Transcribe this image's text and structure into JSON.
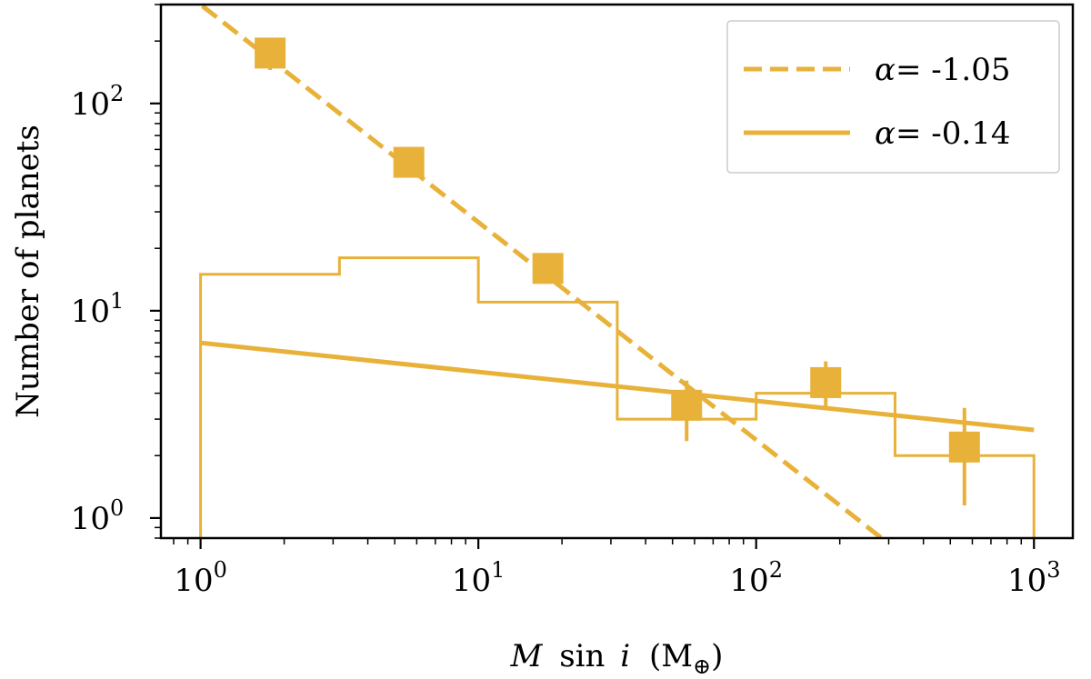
{
  "chart_data": {
    "type": "line",
    "xscale": "log",
    "yscale": "log",
    "xlim": [
      0.72,
      1380
    ],
    "ylim": [
      0.8,
      300
    ],
    "xlabel": {
      "var": "M",
      "func": "sin",
      "var2": "i",
      "unit_open": "(M",
      "unit_sub": "⊕",
      "unit_close": ")"
    },
    "ylabel": "Number of planets",
    "x_ticks": [
      {
        "value": 1,
        "base": "10",
        "exp": "0"
      },
      {
        "value": 10,
        "base": "10",
        "exp": "1"
      },
      {
        "value": 100,
        "base": "10",
        "exp": "2"
      },
      {
        "value": 1000,
        "base": "10",
        "exp": "3"
      }
    ],
    "y_ticks": [
      {
        "value": 1,
        "base": "10",
        "exp": "0"
      },
      {
        "value": 10,
        "base": "10",
        "exp": "1"
      },
      {
        "value": 100,
        "base": "10",
        "exp": "2"
      }
    ],
    "color": "#E8B23A",
    "histogram": {
      "name": "binned counts",
      "edges": [
        1,
        3.162,
        10,
        31.62,
        100,
        316.2,
        1000
      ],
      "values": [
        15,
        18,
        11,
        3,
        4,
        2
      ]
    },
    "points": {
      "name": "normalized counts",
      "x": [
        1.78,
        5.62,
        17.8,
        56.2,
        178,
        562
      ],
      "y": [
        175,
        52,
        16,
        3.5,
        4.5,
        2.2
      ],
      "y_lower": [
        145,
        48,
        13.5,
        2.35,
        3.4,
        1.15
      ],
      "y_upper": [
        190,
        56,
        18.5,
        4.6,
        5.7,
        3.4
      ]
    },
    "fits": [
      {
        "name": "steep fit",
        "label_prefix": "α",
        "label_value": "= -1.05",
        "alpha": -1.05,
        "A": 300,
        "style": "dashed",
        "x_range": [
          0.72,
          1000
        ]
      },
      {
        "name": "flat fit",
        "label_prefix": "α",
        "label_value": "= -0.14",
        "alpha": -0.14,
        "A": 7,
        "style": "solid",
        "x_range": [
          1,
          1000
        ]
      }
    ],
    "legend_position": "top-right"
  }
}
